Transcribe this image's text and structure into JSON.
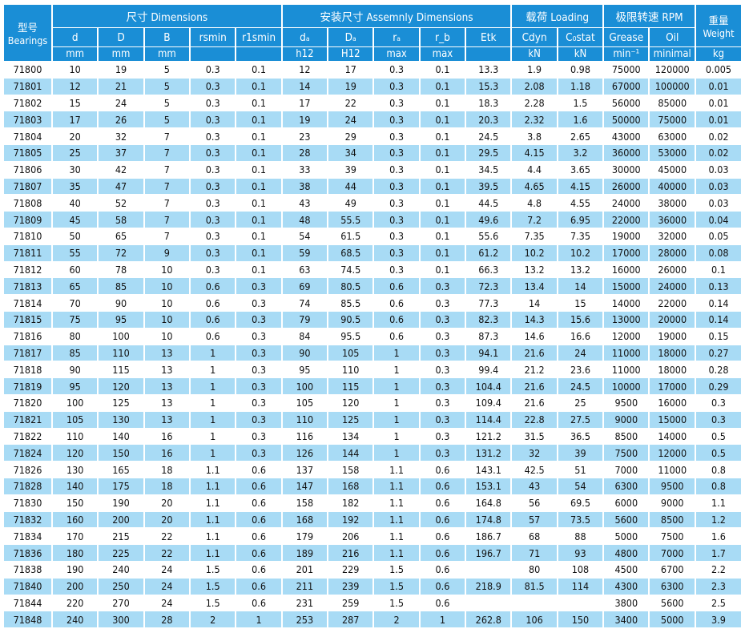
{
  "headers": {
    "model": [
      "型号",
      "Bearings"
    ],
    "groups": {
      "dimensions": "尺寸 Dimensions",
      "assembly": "安装尺寸 Assemnly Dimensions",
      "loading": "载荷 Loading",
      "speed": "极限转速 RPM",
      "weight": [
        "重量",
        "Weight"
      ]
    },
    "columns": [
      "d",
      "D",
      "B",
      "rsmin",
      "r1smin",
      "dₐ",
      "Dₐ",
      "rₐ",
      "r_b",
      "Etk",
      "Cdyn",
      "C₀stat",
      "Grease",
      "Oil"
    ],
    "units": [
      "mm",
      "mm",
      "mm",
      "",
      "",
      "h12",
      "H12",
      "max",
      "max",
      "",
      "kN",
      "kN",
      "min⁻¹",
      "minimal",
      "kg"
    ]
  },
  "colors": {
    "header": "#1a8ed6",
    "stripe": "#a8dbf5"
  },
  "rows": [
    [
      "71800",
      "10",
      "19",
      "5",
      "0.3",
      "0.1",
      "12",
      "17",
      "0.3",
      "0.1",
      "13.3",
      "1.9",
      "0.98",
      "75000",
      "120000",
      "0.005"
    ],
    [
      "71801",
      "12",
      "21",
      "5",
      "0.3",
      "0.1",
      "14",
      "19",
      "0.3",
      "0.1",
      "15.3",
      "2.08",
      "1.18",
      "67000",
      "100000",
      "0.01"
    ],
    [
      "71802",
      "15",
      "24",
      "5",
      "0.3",
      "0.1",
      "17",
      "22",
      "0.3",
      "0.1",
      "18.3",
      "2.28",
      "1.5",
      "56000",
      "85000",
      "0.01"
    ],
    [
      "71803",
      "17",
      "26",
      "5",
      "0.3",
      "0.1",
      "19",
      "24",
      "0.3",
      "0.1",
      "20.3",
      "2.32",
      "1.6",
      "50000",
      "75000",
      "0.01"
    ],
    [
      "71804",
      "20",
      "32",
      "7",
      "0.3",
      "0.1",
      "23",
      "29",
      "0.3",
      "0.1",
      "24.5",
      "3.8",
      "2.65",
      "43000",
      "63000",
      "0.02"
    ],
    [
      "71805",
      "25",
      "37",
      "7",
      "0.3",
      "0.1",
      "28",
      "34",
      "0.3",
      "0.1",
      "29.5",
      "4.15",
      "3.2",
      "36000",
      "53000",
      "0.02"
    ],
    [
      "71806",
      "30",
      "42",
      "7",
      "0.3",
      "0.1",
      "33",
      "39",
      "0.3",
      "0.1",
      "34.5",
      "4.4",
      "3.65",
      "30000",
      "45000",
      "0.03"
    ],
    [
      "71807",
      "35",
      "47",
      "7",
      "0.3",
      "0.1",
      "38",
      "44",
      "0.3",
      "0.1",
      "39.5",
      "4.65",
      "4.15",
      "26000",
      "40000",
      "0.03"
    ],
    [
      "71808",
      "40",
      "52",
      "7",
      "0.3",
      "0.1",
      "43",
      "49",
      "0.3",
      "0.1",
      "44.5",
      "4.8",
      "4.55",
      "24000",
      "38000",
      "0.03"
    ],
    [
      "71809",
      "45",
      "58",
      "7",
      "0.3",
      "0.1",
      "48",
      "55.5",
      "0.3",
      "0.1",
      "49.6",
      "7.2",
      "6.95",
      "22000",
      "36000",
      "0.04"
    ],
    [
      "71810",
      "50",
      "65",
      "7",
      "0.3",
      "0.1",
      "54",
      "61.5",
      "0.3",
      "0.1",
      "55.6",
      "7.35",
      "7.35",
      "19000",
      "32000",
      "0.05"
    ],
    [
      "71811",
      "55",
      "72",
      "9",
      "0.3",
      "0.1",
      "59",
      "68.5",
      "0.3",
      "0.1",
      "61.2",
      "10.2",
      "10.2",
      "17000",
      "28000",
      "0.08"
    ],
    [
      "71812",
      "60",
      "78",
      "10",
      "0.3",
      "0.1",
      "63",
      "74.5",
      "0.3",
      "0.1",
      "66.3",
      "13.2",
      "13.2",
      "16000",
      "26000",
      "0.1"
    ],
    [
      "71813",
      "65",
      "85",
      "10",
      "0.6",
      "0.3",
      "69",
      "80.5",
      "0.6",
      "0.3",
      "72.3",
      "13.4",
      "14",
      "15000",
      "24000",
      "0.13"
    ],
    [
      "71814",
      "70",
      "90",
      "10",
      "0.6",
      "0.3",
      "74",
      "85.5",
      "0.6",
      "0.3",
      "77.3",
      "14",
      "15",
      "14000",
      "22000",
      "0.14"
    ],
    [
      "71815",
      "75",
      "95",
      "10",
      "0.6",
      "0.3",
      "79",
      "90.5",
      "0.6",
      "0.3",
      "82.3",
      "14.3",
      "15.6",
      "13000",
      "20000",
      "0.14"
    ],
    [
      "71816",
      "80",
      "100",
      "10",
      "0.6",
      "0.3",
      "84",
      "95.5",
      "0.6",
      "0.3",
      "87.3",
      "14.6",
      "16.6",
      "12000",
      "19000",
      "0.15"
    ],
    [
      "71817",
      "85",
      "110",
      "13",
      "1",
      "0.3",
      "90",
      "105",
      "1",
      "0.3",
      "94.1",
      "21.6",
      "24",
      "11000",
      "18000",
      "0.27"
    ],
    [
      "71818",
      "90",
      "115",
      "13",
      "1",
      "0.3",
      "95",
      "110",
      "1",
      "0.3",
      "99.4",
      "21.2",
      "23.6",
      "11000",
      "18000",
      "0.28"
    ],
    [
      "71819",
      "95",
      "120",
      "13",
      "1",
      "0.3",
      "100",
      "115",
      "1",
      "0.3",
      "104.4",
      "21.6",
      "24.5",
      "10000",
      "17000",
      "0.29"
    ],
    [
      "71820",
      "100",
      "125",
      "13",
      "1",
      "0.3",
      "105",
      "120",
      "1",
      "0.3",
      "109.4",
      "21.6",
      "25",
      "9500",
      "16000",
      "0.3"
    ],
    [
      "71821",
      "105",
      "130",
      "13",
      "1",
      "0.3",
      "110",
      "125",
      "1",
      "0.3",
      "114.4",
      "22.8",
      "27.5",
      "9000",
      "15000",
      "0.3"
    ],
    [
      "71822",
      "110",
      "140",
      "16",
      "1",
      "0.3",
      "116",
      "134",
      "1",
      "0.3",
      "121.2",
      "31.5",
      "36.5",
      "8500",
      "14000",
      "0.5"
    ],
    [
      "71824",
      "120",
      "150",
      "16",
      "1",
      "0.3",
      "126",
      "144",
      "1",
      "0.3",
      "131.2",
      "32",
      "39",
      "7500",
      "12000",
      "0.5"
    ],
    [
      "71826",
      "130",
      "165",
      "18",
      "1.1",
      "0.6",
      "137",
      "158",
      "1.1",
      "0.6",
      "143.1",
      "42.5",
      "51",
      "7000",
      "11000",
      "0.8"
    ],
    [
      "71828",
      "140",
      "175",
      "18",
      "1.1",
      "0.6",
      "147",
      "168",
      "1.1",
      "0.6",
      "153.1",
      "43",
      "54",
      "6300",
      "9500",
      "0.8"
    ],
    [
      "71830",
      "150",
      "190",
      "20",
      "1.1",
      "0.6",
      "158",
      "182",
      "1.1",
      "0.6",
      "164.8",
      "56",
      "69.5",
      "6000",
      "9000",
      "1.1"
    ],
    [
      "71832",
      "160",
      "200",
      "20",
      "1.1",
      "0.6",
      "168",
      "192",
      "1.1",
      "0.6",
      "174.8",
      "57",
      "73.5",
      "5600",
      "8500",
      "1.2"
    ],
    [
      "71834",
      "170",
      "215",
      "22",
      "1.1",
      "0.6",
      "179",
      "206",
      "1.1",
      "0.6",
      "186.7",
      "68",
      "88",
      "5000",
      "7500",
      "1.6"
    ],
    [
      "71836",
      "180",
      "225",
      "22",
      "1.1",
      "0.6",
      "189",
      "216",
      "1.1",
      "0.6",
      "196.7",
      "71",
      "93",
      "4800",
      "7000",
      "1.7"
    ],
    [
      "71838",
      "190",
      "240",
      "24",
      "1.5",
      "0.6",
      "201",
      "229",
      "1.5",
      "0.6",
      "",
      "80",
      "108",
      "4500",
      "6700",
      "2.2"
    ],
    [
      "71840",
      "200",
      "250",
      "24",
      "1.5",
      "0.6",
      "211",
      "239",
      "1.5",
      "0.6",
      "218.9",
      "81.5",
      "114",
      "4300",
      "6300",
      "2.3"
    ],
    [
      "71844",
      "220",
      "270",
      "24",
      "1.5",
      "0.6",
      "231",
      "259",
      "1.5",
      "0.6",
      "",
      "",
      "",
      "3800",
      "5600",
      "2.5"
    ],
    [
      "71848",
      "240",
      "300",
      "28",
      "2",
      "1",
      "253",
      "287",
      "2",
      "1",
      "262.8",
      "106",
      "150",
      "3400",
      "5000",
      "3.9"
    ]
  ]
}
